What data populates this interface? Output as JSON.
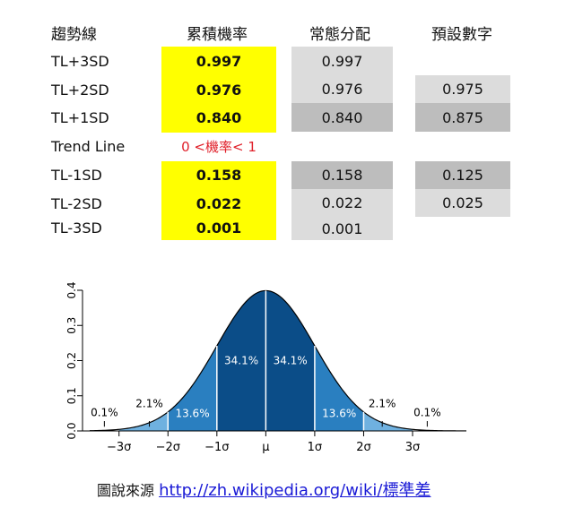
{
  "table": {
    "headers": [
      "趨勢線",
      "累積機率",
      "常態分配",
      "預設數字"
    ],
    "rows": [
      {
        "label": "TL+3SD",
        "cum": "0.997",
        "normal": "0.997",
        "preset": ""
      },
      {
        "label": "TL+2SD",
        "cum": "0.976",
        "normal": "0.976",
        "preset": "0.975"
      },
      {
        "label": "TL+1SD",
        "cum": "0.840",
        "normal": "0.840",
        "preset": "0.875"
      },
      {
        "label": "Trend Line",
        "cum": "0 <機率< 1",
        "normal": "",
        "preset": ""
      },
      {
        "label": "TL-1SD",
        "cum": "0.158",
        "normal": "0.158",
        "preset": "0.125"
      },
      {
        "label": "TL-2SD",
        "cum": "0.022",
        "normal": "0.022",
        "preset": "0.025"
      },
      {
        "label": "TL-3SD",
        "cum": "0.001",
        "normal": "0.001",
        "preset": ""
      }
    ]
  },
  "colors": {
    "highlight": "#ffff00",
    "light_gray": "#dcdcdc",
    "dark_gray": "#bdbdbd",
    "curve_dark": "#0b4d88",
    "curve_mid": "#2a7fc0",
    "curve_light": "#6fb1e0",
    "trend_red": "#e0202a"
  },
  "chart_data": {
    "type": "area",
    "title": "",
    "xlabel": "",
    "ylabel": "",
    "x_ticks": [
      "−3σ",
      "−2σ",
      "−1σ",
      "μ",
      "1σ",
      "2σ",
      "3σ"
    ],
    "y_ticks": [
      "0.0",
      "0.1",
      "0.2",
      "0.3",
      "0.4"
    ],
    "xlim": [
      -3.6,
      4.1
    ],
    "ylim": [
      0,
      0.4
    ],
    "region_labels": [
      {
        "text": "0.1%",
        "x": -3.3,
        "y": 0.042
      },
      {
        "text": "2.1%",
        "x": -2.38,
        "y": 0.068
      },
      {
        "text": "13.6%",
        "x": -1.5,
        "y": 0.04
      },
      {
        "text": "34.1%",
        "x": -0.5,
        "y": 0.19
      },
      {
        "text": "34.1%",
        "x": 0.5,
        "y": 0.19
      },
      {
        "text": "13.6%",
        "x": 1.5,
        "y": 0.04
      },
      {
        "text": "2.1%",
        "x": 2.38,
        "y": 0.068
      },
      {
        "text": "0.1%",
        "x": 3.3,
        "y": 0.042
      }
    ]
  },
  "caption": {
    "prefix": "圖說來源",
    "link": "http://zh.wikipedia.org/wiki/標準差"
  }
}
